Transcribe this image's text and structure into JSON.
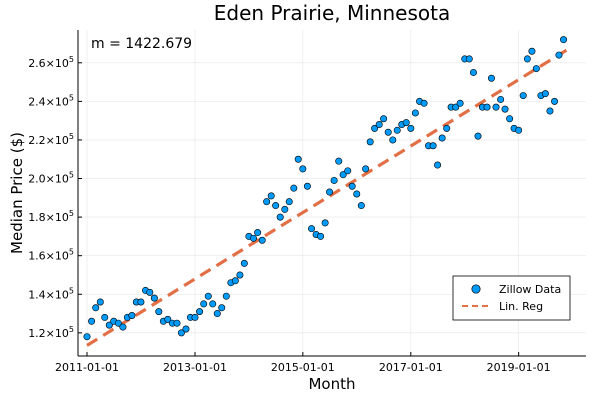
{
  "chart_data": {
    "type": "scatter",
    "title": "Eden Prairie, Minnesota",
    "xlabel": "Month",
    "ylabel": "Median Price ($)",
    "annotation": "m = 1422.679",
    "x_ticks": [
      "2011-01-01",
      "2013-01-01",
      "2015-01-01",
      "2017-01-01",
      "2019-01-01"
    ],
    "y_ticks": [
      {
        "value": 120000,
        "mantissa": "1.2",
        "exp": "5"
      },
      {
        "value": 140000,
        "mantissa": "1.4",
        "exp": "5"
      },
      {
        "value": 160000,
        "mantissa": "1.6",
        "exp": "5"
      },
      {
        "value": 180000,
        "mantissa": "1.8",
        "exp": "5"
      },
      {
        "value": 200000,
        "mantissa": "2.0",
        "exp": "5"
      },
      {
        "value": 220000,
        "mantissa": "2.2",
        "exp": "5"
      },
      {
        "value": 240000,
        "mantissa": "2.4",
        "exp": "5"
      },
      {
        "value": 260000,
        "mantissa": "2.6",
        "exp": "5"
      }
    ],
    "tick_base": "×10",
    "xlim": [
      "2010-11-01",
      "2020-04-01"
    ],
    "ylim": [
      108000,
      277000
    ],
    "grid": true,
    "legend_position": "bottom-right",
    "series": [
      {
        "name": "Zillow Data",
        "type": "scatter",
        "color": "#009af9",
        "x": [
          "2011-01-01",
          "2011-02-01",
          "2011-03-01",
          "2011-04-01",
          "2011-05-01",
          "2011-06-01",
          "2011-07-01",
          "2011-08-01",
          "2011-09-01",
          "2011-10-01",
          "2011-11-01",
          "2011-12-01",
          "2012-01-01",
          "2012-02-01",
          "2012-03-01",
          "2012-04-01",
          "2012-05-01",
          "2012-06-01",
          "2012-07-01",
          "2012-08-01",
          "2012-09-01",
          "2012-10-01",
          "2012-11-01",
          "2012-12-01",
          "2013-01-01",
          "2013-02-01",
          "2013-03-01",
          "2013-04-01",
          "2013-05-01",
          "2013-06-01",
          "2013-07-01",
          "2013-08-01",
          "2013-09-01",
          "2013-10-01",
          "2013-11-01",
          "2013-12-01",
          "2014-01-01",
          "2014-02-01",
          "2014-03-01",
          "2014-04-01",
          "2014-05-01",
          "2014-06-01",
          "2014-07-01",
          "2014-08-01",
          "2014-09-01",
          "2014-10-01",
          "2014-11-01",
          "2014-12-01",
          "2015-01-01",
          "2015-02-01",
          "2015-03-01",
          "2015-04-01",
          "2015-05-01",
          "2015-06-01",
          "2015-07-01",
          "2015-08-01",
          "2015-09-01",
          "2015-10-01",
          "2015-11-01",
          "2015-12-01",
          "2016-01-01",
          "2016-02-01",
          "2016-03-01",
          "2016-04-01",
          "2016-05-01",
          "2016-06-01",
          "2016-07-01",
          "2016-08-01",
          "2016-09-01",
          "2016-10-01",
          "2016-11-01",
          "2016-12-01",
          "2017-01-01",
          "2017-02-01",
          "2017-03-01",
          "2017-04-01",
          "2017-05-01",
          "2017-06-01",
          "2017-07-01",
          "2017-08-01",
          "2017-09-01",
          "2017-10-01",
          "2017-11-01",
          "2017-12-01",
          "2018-01-01",
          "2018-02-01",
          "2018-03-01",
          "2018-04-01",
          "2018-05-01",
          "2018-06-01",
          "2018-07-01",
          "2018-08-01",
          "2018-09-01",
          "2018-10-01",
          "2018-11-01",
          "2018-12-01",
          "2019-01-01",
          "2019-02-01",
          "2019-03-01",
          "2019-04-01",
          "2019-05-01",
          "2019-06-01",
          "2019-07-01",
          "2019-08-01",
          "2019-09-01",
          "2019-10-01",
          "2019-11-01"
        ],
        "y": [
          118000,
          126000,
          133000,
          136000,
          128000,
          124000,
          126000,
          125000,
          123000,
          128000,
          129000,
          136000,
          136000,
          142000,
          141000,
          138000,
          131000,
          126000,
          127000,
          125000,
          125000,
          120000,
          122000,
          128000,
          128000,
          131000,
          135000,
          139000,
          135000,
          130000,
          133000,
          139000,
          146000,
          147000,
          150000,
          156000,
          170000,
          169000,
          172000,
          168000,
          188000,
          191000,
          186000,
          180000,
          184000,
          188000,
          195000,
          210000,
          205000,
          196000,
          174000,
          171000,
          170000,
          177000,
          193000,
          199000,
          209000,
          202000,
          204000,
          196000,
          192000,
          186000,
          205000,
          219000,
          226000,
          228000,
          231000,
          224000,
          220000,
          225000,
          228000,
          229000,
          226000,
          234000,
          240000,
          239000,
          217000,
          217000,
          207000,
          221000,
          226000,
          237000,
          237000,
          239000,
          262000,
          262000,
          255000,
          222000,
          237000,
          237000,
          252000,
          237000,
          241000,
          236000,
          231000,
          226000,
          225000,
          243000,
          262000,
          266000,
          257000,
          243000,
          244000,
          235000,
          240000,
          264000,
          272000
        ]
      },
      {
        "name": "Lin. Reg",
        "type": "line",
        "color": "#e26f46",
        "dash": true,
        "x": [
          "2011-01-01",
          "2019-12-01"
        ],
        "y": [
          113500,
          267000
        ]
      }
    ]
  }
}
